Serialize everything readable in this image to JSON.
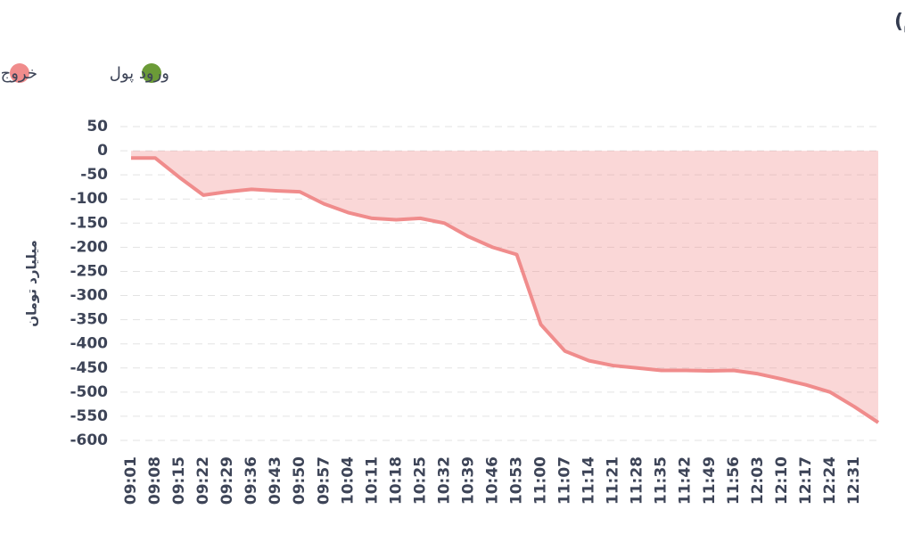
{
  "chart_data": {
    "type": "area",
    "title": "روند تغییر مالکیت حقیقی (سهام و حق تقدم)",
    "y_label": "میلیارد تومان",
    "legend": [
      {
        "name": "ورود پول",
        "color": "#6b9b37"
      },
      {
        "name": "خروج پول",
        "color": "#f08c8c"
      }
    ],
    "categories": [
      "09:01",
      "09:08",
      "09:15",
      "09:22",
      "09:29",
      "09:36",
      "09:43",
      "09:50",
      "09:57",
      "10:04",
      "10:11",
      "10:18",
      "10:25",
      "10:32",
      "10:39",
      "10:46",
      "10:53",
      "11:00",
      "11:07",
      "11:14",
      "11:21",
      "11:28",
      "11:35",
      "11:42",
      "11:49",
      "11:56",
      "12:03",
      "12:10",
      "12:17",
      "12:24",
      "12:31",
      null
    ],
    "series": [
      {
        "name": "خروج پول",
        "color": "#f08c8c",
        "values": [
          -15,
          -15,
          -55,
          -92,
          -85,
          -80,
          -83,
          -85,
          -110,
          -128,
          -140,
          -143,
          -140,
          -150,
          -178,
          -200,
          -215,
          -360,
          -415,
          -435,
          -445,
          -450,
          -455,
          -455,
          -456,
          -455,
          -462,
          -473,
          -485,
          -500,
          -530,
          -563
        ]
      }
    ],
    "ylim": [
      -600,
      50
    ],
    "yticks": [
      50,
      0,
      -50,
      -100,
      -150,
      -200,
      -250,
      -300,
      -350,
      -400,
      -450,
      -500,
      -550,
      -600
    ],
    "grid": true
  }
}
